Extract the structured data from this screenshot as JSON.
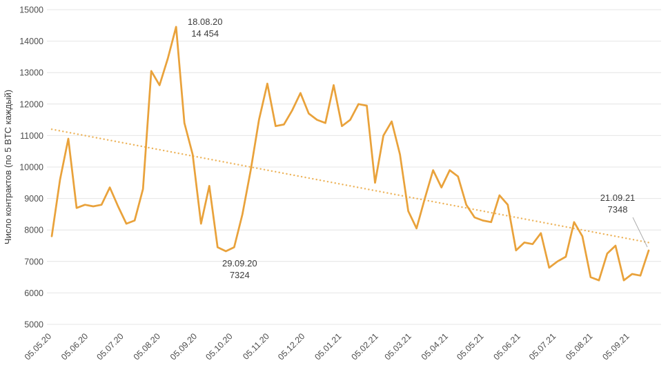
{
  "chart_theme": {
    "background": "#ffffff",
    "line_color": "#E9A23B",
    "trend_color": "#EDB45C",
    "grid_color": "#E4E4E4",
    "tick_text_color": "#4D4D4D",
    "axis_title_color": "#3B3B3B",
    "annotation_text_color": "#3B3B3B",
    "callout_line_color": "#A9A9A9"
  },
  "chart_data": {
    "type": "line",
    "title": "",
    "xlabel": "",
    "ylabel": "Число контрактов (по 5 BTC каждый)",
    "ylim": [
      5000,
      15000
    ],
    "y_ticks": [
      15000,
      14000,
      13000,
      12000,
      11000,
      10000,
      9000,
      8000,
      7000,
      6000,
      5000
    ],
    "x_tick_labels": [
      "05.05.20",
      "05.06.20",
      "05.07.20",
      "05.08.20",
      "05.09.20",
      "05.10.20",
      "05.11.20",
      "05.12.20",
      "05.01.21",
      "05.02.21",
      "05.03.21",
      "05.04.21",
      "05.05.21",
      "05.06.21",
      "05.07.21",
      "05.08.21",
      "05.09.21"
    ],
    "x_tick_day_offsets": [
      0,
      31,
      61,
      92,
      123,
      153,
      184,
      214,
      245,
      276,
      304,
      335,
      365,
      396,
      426,
      457,
      488
    ],
    "x_total_days": 504,
    "grid": "horizontal",
    "legend": null,
    "series": [
      {
        "name": "Число контрактов (по 5 BTC каждый)",
        "start_date": "05.05.2020",
        "interval_days": 7,
        "values": [
          7800,
          9600,
          10900,
          8700,
          8800,
          8750,
          8800,
          9350,
          8750,
          8200,
          8300,
          9300,
          13050,
          12600,
          13450,
          14454,
          11400,
          10400,
          8200,
          9400,
          7450,
          7324,
          7450,
          8500,
          9900,
          11500,
          12650,
          11300,
          11350,
          11800,
          12350,
          11700,
          11500,
          11400,
          12600,
          11300,
          11500,
          12000,
          11950,
          9500,
          11000,
          11450,
          10400,
          8600,
          8050,
          9000,
          9900,
          9350,
          9900,
          9700,
          8800,
          8400,
          8300,
          8250,
          9100,
          8800,
          7350,
          7600,
          7550,
          7900,
          6800,
          7000,
          7150,
          8250,
          7800,
          6500,
          6400,
          7250,
          7500,
          6400,
          6600,
          6550,
          7348
        ]
      }
    ],
    "trendline": {
      "style": "dotted",
      "start_value": 11200,
      "end_value": 7600
    },
    "annotations": [
      {
        "date": "18.08.20",
        "value_label": "14 454",
        "value": 14454,
        "point_index": 15,
        "placement": "above-right"
      },
      {
        "date": "29.09.20",
        "value_label": "7324",
        "value": 7324,
        "point_index": 21,
        "placement": "below"
      },
      {
        "date": "21.09.21",
        "value_label": "7348",
        "value": 7348,
        "point_index": 72,
        "placement": "callout-upper-left"
      }
    ]
  }
}
